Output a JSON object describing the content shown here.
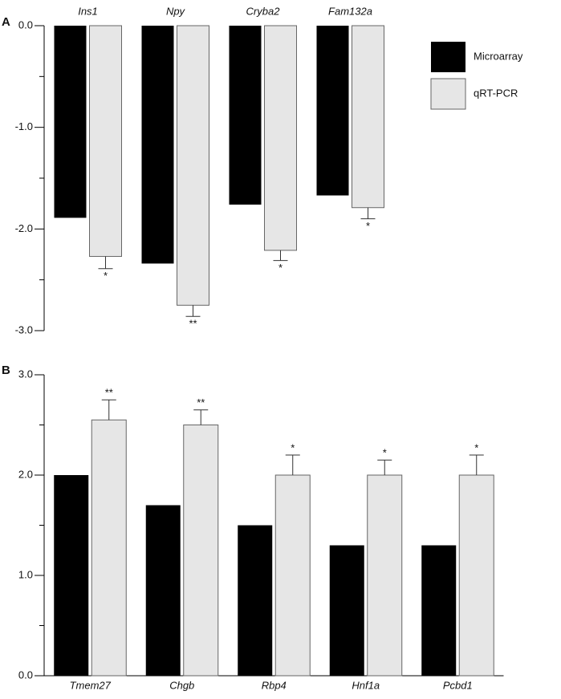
{
  "chart_data": [
    {
      "type": "bar",
      "panel_label": "A",
      "categories": [
        "Ins1",
        "Npy",
        "Cryba2",
        "Fam132a"
      ],
      "series": [
        {
          "name": "Microarray",
          "color": "#000000",
          "values": [
            -1.89,
            -2.34,
            -1.76,
            -1.67
          ]
        },
        {
          "name": "qRT-PCR",
          "color": "#e6e6e6",
          "values": [
            -2.27,
            -2.75,
            -2.21,
            -1.79
          ],
          "errors": [
            0.12,
            0.11,
            0.1,
            0.11
          ],
          "annotations": [
            "*",
            "**",
            "*",
            "*"
          ]
        }
      ],
      "ylim": [
        -3,
        0
      ],
      "yticks": [
        {
          "value": 0,
          "label": "0.0"
        },
        {
          "value": -1,
          "label": "-1.0"
        },
        {
          "value": -2,
          "label": "-2.0"
        },
        {
          "value": -3,
          "label": "-3.0"
        }
      ],
      "minor_yticks": [
        -0.5,
        -1.5,
        -2.5
      ],
      "legend": "top-right"
    },
    {
      "type": "bar",
      "panel_label": "B",
      "categories": [
        "Tmem27",
        "Chgb",
        "Rbp4",
        "Hnf1a",
        "Pcbd1"
      ],
      "series": [
        {
          "name": "Microarray",
          "color": "#000000",
          "values": [
            2.0,
            1.7,
            1.5,
            1.3,
            1.3
          ]
        },
        {
          "name": "qRT-PCR",
          "color": "#e6e6e6",
          "values": [
            2.55,
            2.5,
            2.0,
            2.0,
            2.0
          ],
          "errors": [
            0.2,
            0.15,
            0.2,
            0.15,
            0.2
          ],
          "annotations": [
            "**",
            "**",
            "*",
            "*",
            "*"
          ]
        }
      ],
      "ylim": [
        0,
        3
      ],
      "yticks": [
        {
          "value": 0,
          "label": "0.0"
        },
        {
          "value": 1,
          "label": "1.0"
        },
        {
          "value": 2,
          "label": "2.0"
        },
        {
          "value": 3,
          "label": "3.0"
        }
      ],
      "minor_yticks": [
        0.5,
        1.5,
        2.5
      ]
    }
  ]
}
